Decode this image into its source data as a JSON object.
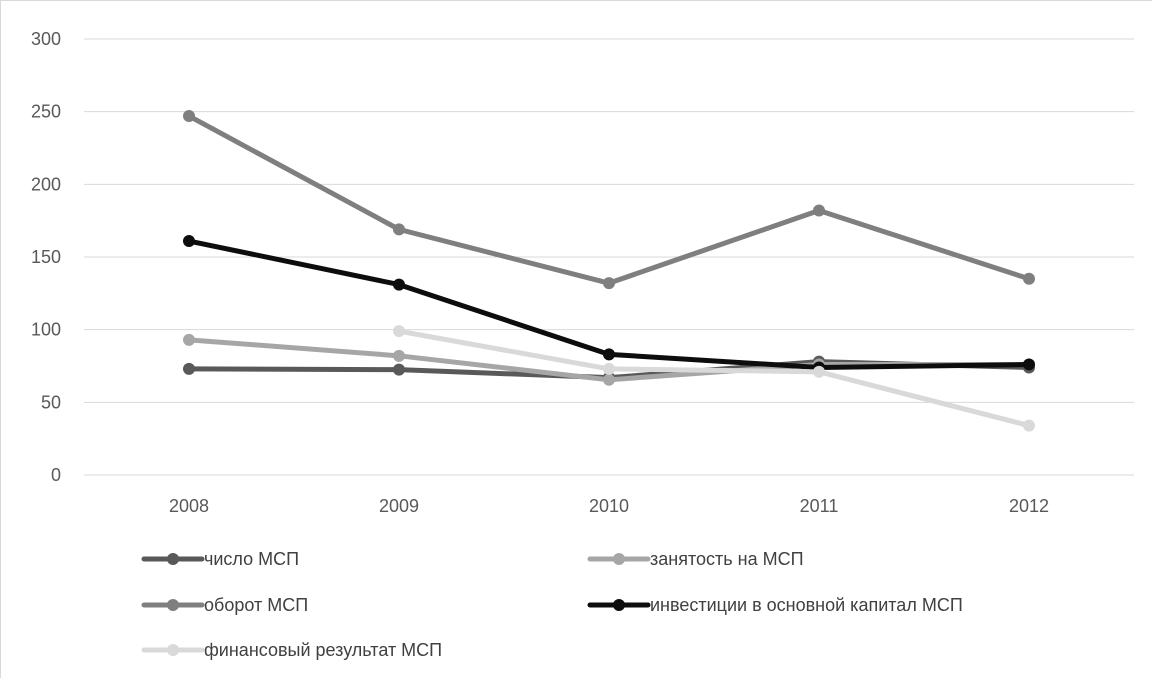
{
  "chart_data": {
    "type": "line",
    "title": "",
    "xlabel": "",
    "ylabel": "",
    "categories": [
      "2008",
      "2009",
      "2010",
      "2011",
      "2012"
    ],
    "ylim": [
      0,
      300
    ],
    "yticks": [
      0,
      50,
      100,
      150,
      200,
      250,
      300
    ],
    "grid": true,
    "legend_position": "bottom",
    "series": [
      {
        "name": "число МСП",
        "color": "#595959",
        "values": [
          73,
          72.5,
          67,
          78,
          74
        ]
      },
      {
        "name": "занятость на МСП",
        "color": "#a6a6a6",
        "values": [
          93,
          82,
          65.5,
          76,
          76
        ]
      },
      {
        "name": "оборот МСП",
        "color": "#7f7f7f",
        "values": [
          247,
          169,
          132,
          182,
          135
        ]
      },
      {
        "name": "инвестиции в основной капитал МСП",
        "color": "#0d0d0d",
        "values": [
          161,
          131,
          83,
          74,
          76
        ]
      },
      {
        "name": "финансовый результат МСП",
        "color": "#d9d9d9",
        "values": [
          null,
          99,
          73,
          71,
          34
        ]
      }
    ]
  }
}
